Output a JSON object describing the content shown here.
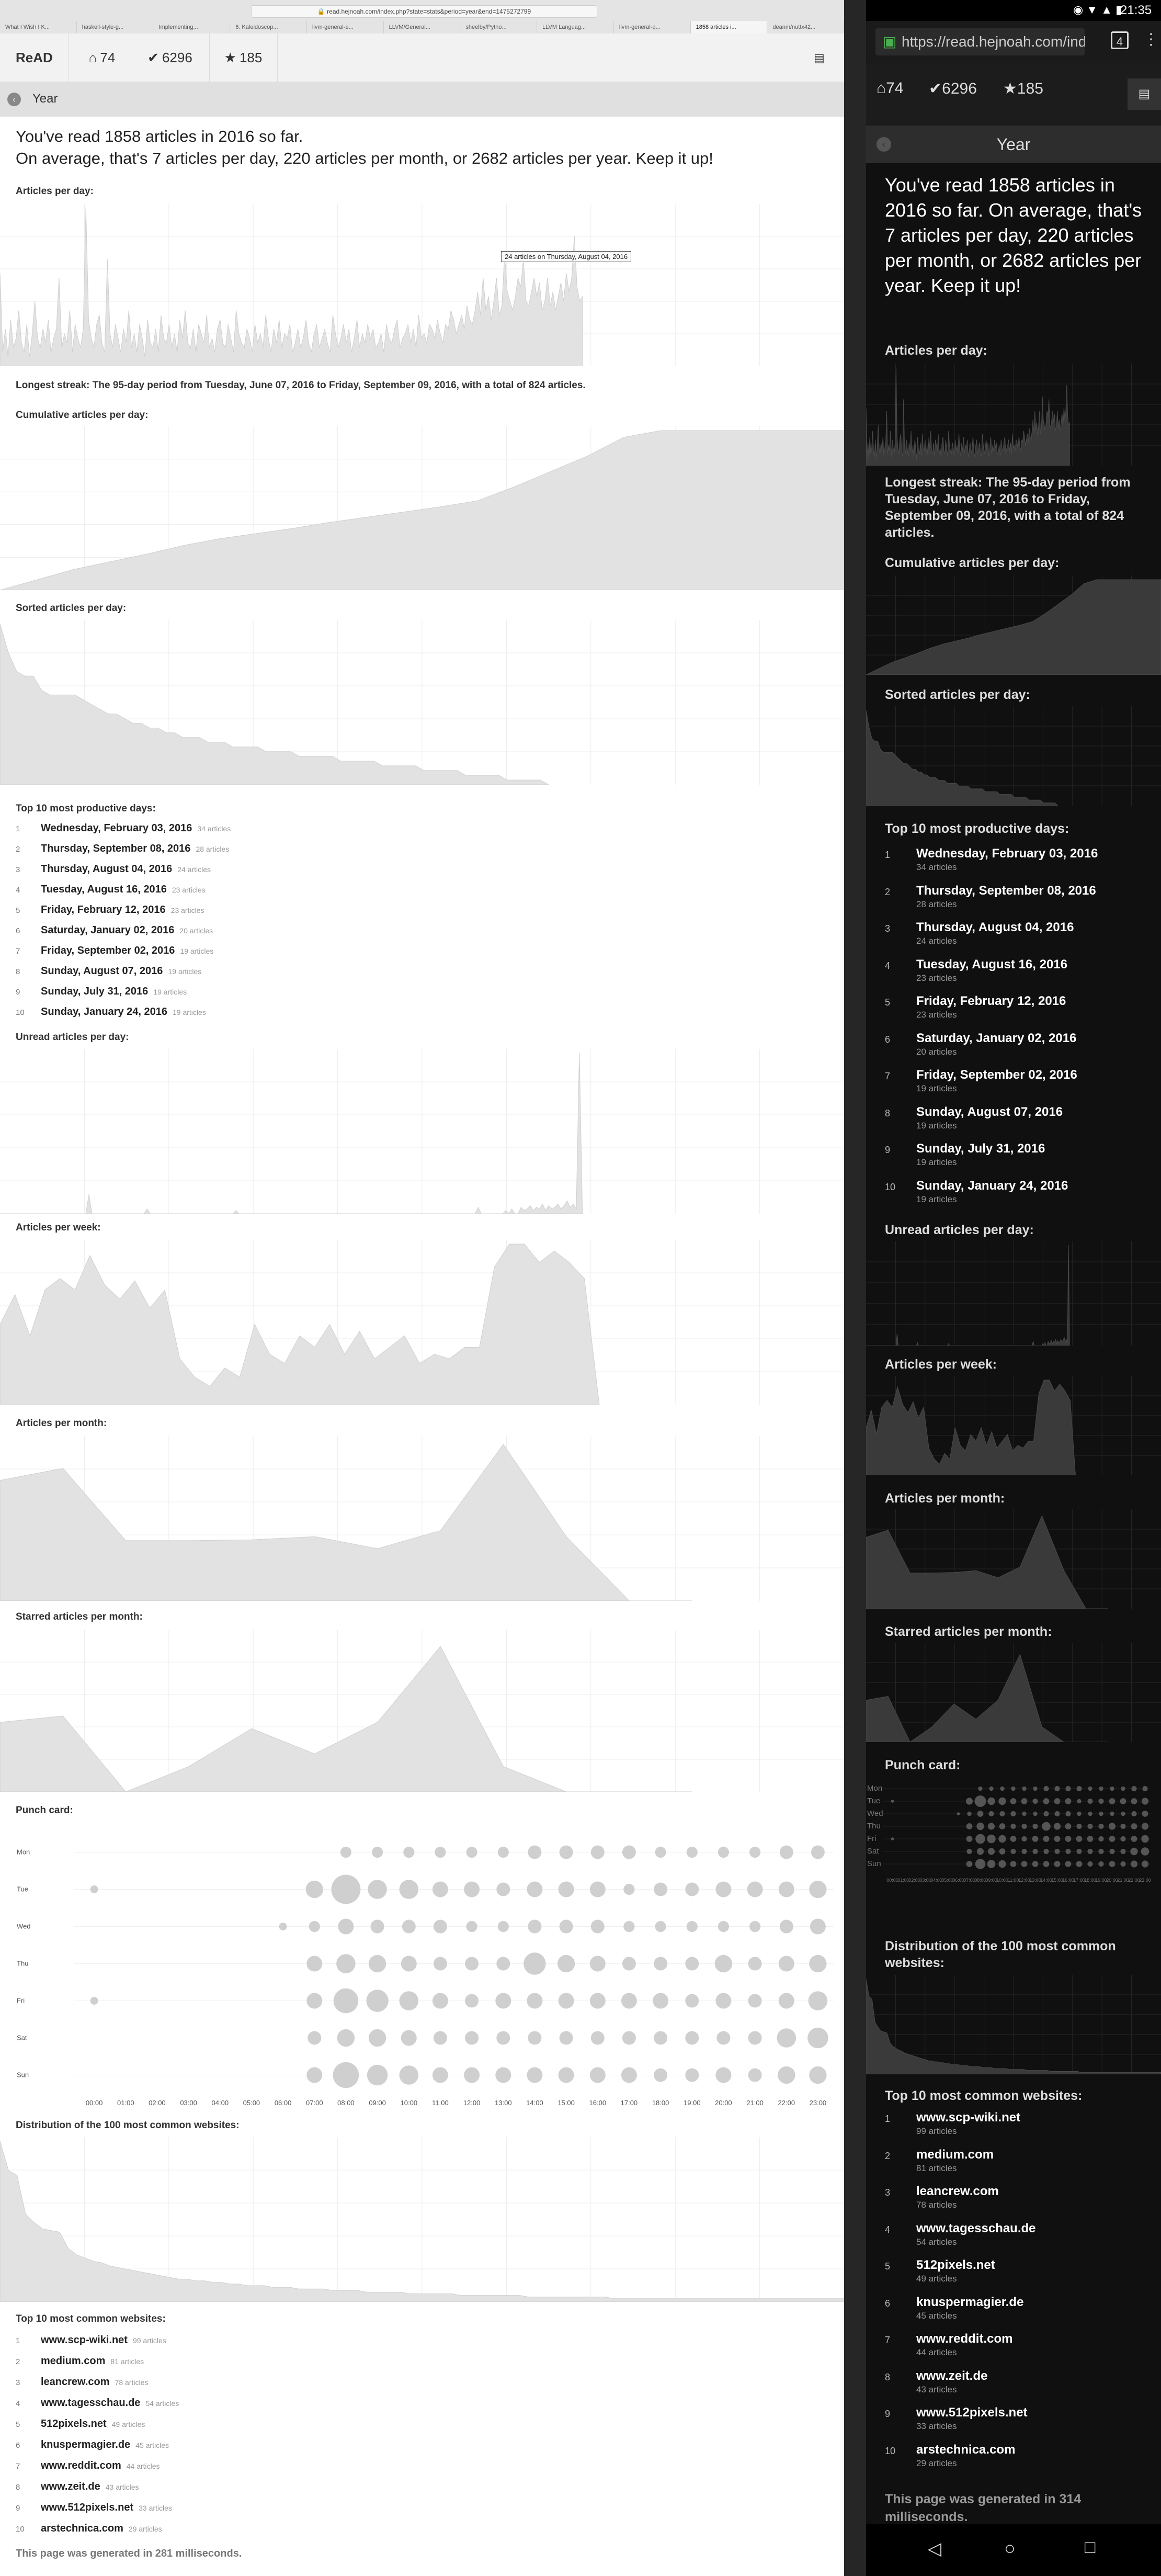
{
  "browser": {
    "url": "read.hejnoah.com/index.php?state=stats&period=year&end=1475272799",
    "tabs": [
      "What I Wish I K...",
      "haskell-style-g...",
      "Implementing...",
      "6. Kaleidoscop...",
      "llvm-general-e...",
      "LLVM/General...",
      "sheelby/Pytho...",
      "LLVM Languag...",
      "llvm-general-q...",
      "1858 articles i...",
      "deanm/nuttx42..."
    ]
  },
  "nav": {
    "brand": "ReAD",
    "inbox_count": "74",
    "read_count": "6296",
    "starred_count": "185"
  },
  "section_title": "Year",
  "summary_line1": "You've read 1858 articles in 2016 so far.",
  "summary_line2": "On average, that's 7 articles per day, 220 articles per month, or 2682 articles per year. Keep it up!",
  "summary_full": "You've read 1858 articles in 2016 so far. On average, that's 7 articles per day, 220 articles per month, or 2682 articles per year. Keep it up!",
  "headings": {
    "articles_per_day": "Articles per day:",
    "cumulative": "Cumulative articles per day:",
    "sorted": "Sorted articles per day:",
    "top_days": "Top 10 most productive days:",
    "unread": "Unread articles per day:",
    "per_week": "Articles per week:",
    "per_month": "Articles per month:",
    "starred_month": "Starred articles per month:",
    "punch": "Punch card:",
    "distribution": "Distribution of the 100 most common websites:",
    "top_sites": "Top 10 most common websites:"
  },
  "tooltip": "24 articles on Thursday, August 04, 2016",
  "streak": "Longest streak: The 95-day period from Tuesday, June 07, 2016 to Friday, September 09, 2016, with a total of 824 articles.",
  "top_days": [
    {
      "rank": "1",
      "date": "Wednesday, February 03, 2016",
      "count": "34 articles"
    },
    {
      "rank": "2",
      "date": "Thursday, September 08, 2016",
      "count": "28 articles"
    },
    {
      "rank": "3",
      "date": "Thursday, August 04, 2016",
      "count": "24 articles"
    },
    {
      "rank": "4",
      "date": "Tuesday, August 16, 2016",
      "count": "23 articles"
    },
    {
      "rank": "5",
      "date": "Friday, February 12, 2016",
      "count": "23 articles"
    },
    {
      "rank": "6",
      "date": "Saturday, January 02, 2016",
      "count": "20 articles"
    },
    {
      "rank": "7",
      "date": "Friday, September 02, 2016",
      "count": "19 articles"
    },
    {
      "rank": "8",
      "date": "Sunday, August 07, 2016",
      "count": "19 articles"
    },
    {
      "rank": "9",
      "date": "Sunday, July 31, 2016",
      "count": "19 articles"
    },
    {
      "rank": "10",
      "date": "Sunday, January 24, 2016",
      "count": "19 articles"
    }
  ],
  "top_sites": [
    {
      "rank": "1",
      "site": "www.scp-wiki.net",
      "count": "99 articles"
    },
    {
      "rank": "2",
      "site": "medium.com",
      "count": "81 articles"
    },
    {
      "rank": "3",
      "site": "leancrew.com",
      "count": "78 articles"
    },
    {
      "rank": "4",
      "site": "www.tagesschau.de",
      "count": "54 articles"
    },
    {
      "rank": "5",
      "site": "512pixels.net",
      "count": "49 articles"
    },
    {
      "rank": "6",
      "site": "knuspermagier.de",
      "count": "45 articles"
    },
    {
      "rank": "7",
      "site": "www.reddit.com",
      "count": "44 articles"
    },
    {
      "rank": "8",
      "site": "www.zeit.de",
      "count": "43 articles"
    },
    {
      "rank": "9",
      "site": "www.512pixels.net",
      "count": "33 articles"
    },
    {
      "rank": "10",
      "site": "arstechnica.com",
      "count": "29 articles"
    }
  ],
  "footer_desktop": "This page was generated in 281 milliseconds.",
  "footer_phone": "This page was generated in 314 milliseconds.",
  "phone": {
    "time": "21:35",
    "url": "https://read.hejnoah.com/inde",
    "tab_count": "4"
  },
  "punch": {
    "days": [
      "Mon",
      "Tue",
      "Wed",
      "Thu",
      "Fri",
      "Sat",
      "Sun"
    ],
    "hours": [
      "00:00",
      "01:00",
      "02:00",
      "03:00",
      "04:00",
      "05:00",
      "06:00",
      "07:00",
      "08:00",
      "09:00",
      "10:00",
      "11:00",
      "12:00",
      "13:00",
      "14:00",
      "15:00",
      "16:00",
      "17:00",
      "18:00",
      "19:00",
      "20:00",
      "21:00",
      "22:00",
      "23:00"
    ],
    "counts": [
      [
        0,
        0,
        0,
        0,
        0,
        0,
        0,
        0,
        2,
        2,
        2,
        2,
        2,
        2,
        3,
        3,
        3,
        3,
        2,
        2,
        2,
        2,
        3,
        3
      ],
      [
        1,
        0,
        0,
        0,
        0,
        0,
        0,
        5,
        14,
        6,
        6,
        4,
        4,
        3,
        4,
        4,
        4,
        2,
        3,
        3,
        4,
        4,
        4,
        5
      ],
      [
        0,
        0,
        0,
        0,
        0,
        0,
        1,
        2,
        4,
        3,
        3,
        3,
        2,
        2,
        3,
        3,
        3,
        2,
        2,
        2,
        2,
        2,
        3,
        4
      ],
      [
        0,
        0,
        0,
        0,
        0,
        0,
        0,
        4,
        6,
        5,
        4,
        3,
        3,
        3,
        8,
        5,
        4,
        3,
        3,
        3,
        5,
        3,
        4,
        5
      ],
      [
        1,
        0,
        0,
        0,
        0,
        0,
        0,
        4,
        10,
        8,
        6,
        4,
        3,
        4,
        4,
        4,
        4,
        4,
        4,
        3,
        4,
        3,
        4,
        6
      ],
      [
        0,
        0,
        0,
        0,
        0,
        0,
        0,
        3,
        5,
        5,
        4,
        3,
        3,
        3,
        3,
        3,
        3,
        3,
        3,
        3,
        3,
        3,
        6,
        7
      ],
      [
        0,
        0,
        0,
        0,
        0,
        0,
        0,
        4,
        11,
        7,
        6,
        4,
        4,
        4,
        4,
        4,
        4,
        4,
        3,
        3,
        4,
        3,
        5,
        5
      ]
    ]
  },
  "chart_data": [
    {
      "type": "area",
      "title": "Articles per day:",
      "x_label": "day of 2016",
      "ylim": [
        0,
        34
      ],
      "values": [
        20,
        3,
        8,
        2,
        10,
        4,
        6,
        12,
        5,
        3,
        9,
        2,
        7,
        14,
        6,
        4,
        8,
        5,
        10,
        3,
        6,
        8,
        19,
        4,
        7,
        5,
        12,
        3,
        9,
        6,
        4,
        8,
        34,
        10,
        6,
        4,
        9,
        11,
        5,
        3,
        23,
        7,
        4,
        9,
        6,
        3,
        8,
        5,
        12,
        4,
        7,
        3,
        9,
        6,
        2,
        10,
        5,
        4,
        8,
        3,
        11,
        6,
        5,
        9,
        4,
        7,
        3,
        10,
        6,
        12,
        5,
        4,
        8,
        3,
        9,
        7,
        5,
        11,
        4,
        6,
        3,
        8,
        10,
        5,
        4,
        9,
        6,
        3,
        12,
        7,
        5,
        4,
        8,
        6,
        3,
        9,
        5,
        7,
        4,
        11,
        6,
        3,
        8,
        5,
        10,
        4,
        7,
        6,
        9,
        3,
        5,
        8,
        4,
        6,
        10,
        5,
        3,
        7,
        9,
        4,
        6,
        8,
        5,
        3,
        11,
        7,
        4,
        6,
        9,
        5,
        8,
        3,
        6,
        10,
        4,
        7,
        5,
        9,
        6,
        8,
        4,
        5,
        7,
        3,
        9,
        6,
        5,
        8,
        10,
        4,
        6,
        7,
        9,
        5,
        8,
        4,
        11,
        6,
        7,
        5,
        9,
        8,
        6,
        10,
        7,
        5,
        9,
        8,
        12,
        10,
        7,
        9,
        11,
        8,
        13,
        10,
        9,
        12,
        16,
        11,
        19,
        12,
        15,
        10,
        14,
        19,
        11,
        13,
        24,
        16,
        14,
        12,
        15,
        19,
        17,
        23,
        14,
        13,
        16,
        19,
        15,
        18,
        12,
        14,
        19,
        13,
        16,
        12,
        15,
        18,
        14,
        20,
        16,
        19,
        28,
        17,
        14,
        15
      ],
      "annotation": "24 articles on Thursday, August 04, 2016"
    },
    {
      "type": "area",
      "title": "Cumulative articles per day:",
      "ylim": [
        0,
        1858
      ],
      "values": [
        0,
        120,
        240,
        330,
        420,
        520,
        600,
        660,
        720,
        790,
        850,
        910,
        970,
        1040,
        1200,
        1380,
        1560,
        1780,
        1858,
        1858,
        1858,
        1858,
        1858,
        1858
      ]
    },
    {
      "type": "area",
      "title": "Sorted articles per day:",
      "ylim": [
        0,
        34
      ],
      "values": [
        34,
        28,
        24,
        23,
        23,
        20,
        19,
        19,
        19,
        19,
        18,
        17,
        16,
        15,
        15,
        14,
        13,
        13,
        12,
        12,
        11,
        11,
        10,
        10,
        10,
        9,
        9,
        9,
        8,
        8,
        8,
        8,
        7,
        7,
        7,
        7,
        6,
        6,
        6,
        6,
        6,
        5,
        5,
        5,
        5,
        5,
        4,
        4,
        4,
        4,
        4,
        3,
        3,
        3,
        3,
        3,
        2,
        2,
        2,
        2,
        2,
        1,
        1,
        1,
        1,
        1,
        0
      ]
    },
    {
      "type": "area",
      "title": "Unread articles per day:",
      "ylim": [
        0,
        100
      ],
      "values": [
        0,
        0,
        0,
        0,
        0,
        0,
        0,
        0,
        0,
        0,
        0,
        0,
        0,
        0,
        0,
        0,
        0,
        0,
        0,
        0,
        0,
        0,
        0,
        0,
        0,
        0,
        0,
        0,
        0,
        12,
        0,
        0,
        0,
        0,
        0,
        0,
        0,
        0,
        0,
        0,
        0,
        0,
        0,
        0,
        0,
        0,
        0,
        0,
        3,
        0,
        0,
        0,
        0,
        0,
        0,
        0,
        0,
        0,
        0,
        0,
        0,
        0,
        0,
        0,
        0,
        0,
        0,
        0,
        0,
        0,
        0,
        0,
        0,
        0,
        0,
        0,
        0,
        2,
        0,
        0,
        0,
        0,
        0,
        0,
        0,
        0,
        0,
        0,
        0,
        0,
        0,
        0,
        0,
        0,
        0,
        0,
        0,
        0,
        0,
        0,
        0,
        0,
        0,
        0,
        0,
        0,
        0,
        0,
        0,
        0,
        0,
        0,
        0,
        0,
        0,
        0,
        0,
        0,
        0,
        0,
        0,
        0,
        0,
        0,
        0,
        0,
        0,
        0,
        0,
        0,
        0,
        0,
        0,
        0,
        0,
        0,
        0,
        0,
        0,
        0,
        0,
        0,
        0,
        0,
        0,
        0,
        0,
        0,
        0,
        0,
        0,
        0,
        0,
        0,
        0,
        0,
        4,
        0,
        0,
        0,
        0,
        0,
        0,
        0,
        0,
        2,
        0,
        3,
        0,
        0,
        4,
        2,
        3,
        5,
        2,
        4,
        3,
        6,
        2,
        5,
        3,
        4,
        6,
        3,
        5,
        8,
        4,
        6,
        3,
        100,
        0
      ]
    },
    {
      "type": "area",
      "title": "Articles per week:",
      "ylim": [
        0,
        70
      ],
      "values": [
        35,
        48,
        30,
        50,
        55,
        50,
        65,
        52,
        46,
        54,
        42,
        50,
        20,
        12,
        8,
        16,
        12,
        35,
        22,
        18,
        30,
        25,
        35,
        22,
        32,
        20,
        25,
        30,
        18,
        22,
        20,
        25,
        25,
        60,
        70,
        70,
        62,
        67,
        62,
        55,
        0
      ]
    },
    {
      "type": "area",
      "title": "Articles per month:",
      "ylim": [
        0,
        400
      ],
      "values": [
        300,
        330,
        150,
        150,
        152,
        160,
        130,
        175,
        390,
        160,
        0,
        0
      ]
    },
    {
      "type": "area",
      "title": "Starred articles per month:",
      "ylim": [
        0,
        50
      ],
      "values": [
        22,
        24,
        0,
        8,
        20,
        12,
        22,
        46,
        8,
        0,
        0,
        0
      ]
    },
    {
      "type": "area",
      "title": "Distribution of the 100 most common websites:",
      "ylim": [
        0,
        99
      ],
      "values": [
        99,
        81,
        78,
        54,
        49,
        45,
        44,
        43,
        33,
        29,
        27,
        25,
        24,
        22,
        21,
        20,
        19,
        18,
        17,
        16,
        15,
        14,
        14,
        13,
        13,
        12,
        12,
        11,
        11,
        10,
        10,
        10,
        9,
        9,
        9,
        8,
        8,
        8,
        8,
        7,
        7,
        7,
        7,
        6,
        6,
        6,
        6,
        6,
        5,
        5,
        5,
        5,
        5,
        5,
        4,
        4,
        4,
        4,
        4,
        4,
        4,
        4,
        3,
        3,
        3,
        3,
        3,
        3,
        3,
        3,
        3,
        3,
        2,
        2,
        2,
        2,
        2,
        2,
        2,
        2,
        2,
        2,
        2,
        2,
        2,
        2,
        2,
        2,
        2,
        2,
        2,
        2,
        2,
        2,
        2,
        2,
        2,
        2,
        2,
        2
      ]
    }
  ]
}
